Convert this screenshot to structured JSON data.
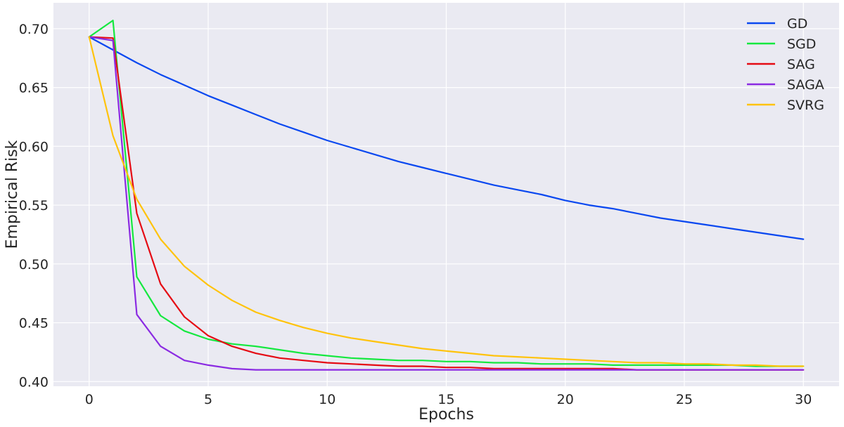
{
  "chart_data": {
    "type": "line",
    "xlabel": "Epochs",
    "ylabel": "Empirical Risk",
    "xlim": [
      -1.5,
      31.5
    ],
    "ylim": [
      0.396,
      0.722
    ],
    "xticks": [
      0,
      5,
      10,
      15,
      20,
      25,
      30
    ],
    "yticks": [
      0.4,
      0.45,
      0.5,
      0.55,
      0.6,
      0.65,
      0.7
    ],
    "ytick_labels": [
      "0.40",
      "0.45",
      "0.50",
      "0.55",
      "0.60",
      "0.65",
      "0.70"
    ],
    "grid": true,
    "background": "#eaeaf2",
    "legend_position": "top-right",
    "x": [
      0,
      1,
      2,
      3,
      4,
      5,
      6,
      7,
      8,
      9,
      10,
      11,
      12,
      13,
      14,
      15,
      16,
      17,
      18,
      19,
      20,
      21,
      22,
      23,
      24,
      25,
      26,
      27,
      28,
      29,
      30
    ],
    "series": [
      {
        "name": "GD",
        "color": "#0a48f0",
        "values": [
          0.693,
          0.682,
          0.671,
          0.661,
          0.652,
          0.643,
          0.635,
          0.627,
          0.619,
          0.612,
          0.605,
          0.599,
          0.593,
          0.587,
          0.582,
          0.577,
          0.572,
          0.567,
          0.563,
          0.559,
          0.554,
          0.55,
          0.547,
          0.543,
          0.539,
          0.536,
          0.533,
          0.53,
          0.527,
          0.524,
          0.521
        ]
      },
      {
        "name": "SGD",
        "color": "#15e83f",
        "values": [
          0.693,
          0.707,
          0.489,
          0.456,
          0.443,
          0.436,
          0.432,
          0.43,
          0.427,
          0.424,
          0.422,
          0.42,
          0.419,
          0.418,
          0.418,
          0.417,
          0.417,
          0.416,
          0.416,
          0.415,
          0.415,
          0.415,
          0.414,
          0.414,
          0.414,
          0.414,
          0.414,
          0.414,
          0.413,
          0.413,
          0.413
        ]
      },
      {
        "name": "SAG",
        "color": "#e50b14",
        "values": [
          0.693,
          0.692,
          0.543,
          0.483,
          0.455,
          0.439,
          0.43,
          0.424,
          0.42,
          0.418,
          0.416,
          0.415,
          0.414,
          0.413,
          0.413,
          0.412,
          0.412,
          0.411,
          0.411,
          0.411,
          0.411,
          0.411,
          0.411,
          0.41,
          0.41,
          0.41,
          0.41,
          0.41,
          0.41,
          0.41,
          0.41
        ]
      },
      {
        "name": "SAGA",
        "color": "#8b2be2",
        "values": [
          0.693,
          0.69,
          0.457,
          0.43,
          0.418,
          0.414,
          0.411,
          0.41,
          0.41,
          0.41,
          0.41,
          0.41,
          0.41,
          0.41,
          0.41,
          0.41,
          0.41,
          0.41,
          0.41,
          0.41,
          0.41,
          0.41,
          0.41,
          0.41,
          0.41,
          0.41,
          0.41,
          0.41,
          0.41,
          0.41,
          0.41
        ]
      },
      {
        "name": "SVRG",
        "color": "#ffc30b",
        "values": [
          0.693,
          0.609,
          0.555,
          0.521,
          0.498,
          0.482,
          0.469,
          0.459,
          0.452,
          0.446,
          0.441,
          0.437,
          0.434,
          0.431,
          0.428,
          0.426,
          0.424,
          0.422,
          0.421,
          0.42,
          0.419,
          0.418,
          0.417,
          0.416,
          0.416,
          0.415,
          0.415,
          0.414,
          0.414,
          0.413,
          0.413
        ]
      }
    ]
  }
}
